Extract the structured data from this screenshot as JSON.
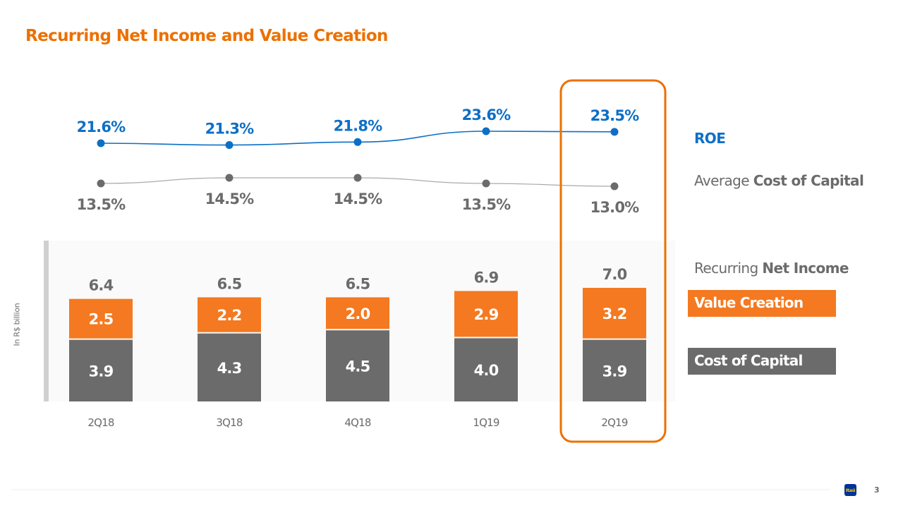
{
  "page": {
    "title": "Recurring Net Income and Value Creation",
    "page_number": "3",
    "logo_text": "Itaú",
    "y_unit_label": "In R$ billion"
  },
  "legend": {
    "roe": "ROE",
    "coc_prefix": "Average ",
    "coc_bold": "Cost of Capital",
    "rni_prefix": "Recurring ",
    "rni_bold": "Net Income",
    "value_creation": "Value Creation",
    "cost_of_capital": "Cost of Capital"
  },
  "colors": {
    "orange": "#f47920",
    "gray": "#6b6b6b",
    "blue": "#0d6fc6",
    "highlight": "#ec7000",
    "panel": "#fafafa"
  },
  "chart_data": {
    "type": "bar",
    "stacked": true,
    "title": "Recurring Net Income and Value Creation",
    "ylabel": "In R$ billion",
    "categories": [
      "2Q18",
      "3Q18",
      "4Q18",
      "1Q19",
      "2Q19"
    ],
    "highlighted_category": "2Q19",
    "series": [
      {
        "name": "Cost of Capital",
        "values": [
          3.9,
          4.3,
          4.5,
          4.0,
          3.9
        ],
        "labels": [
          "3.9",
          "4.3",
          "4.5",
          "4.0",
          "3.9"
        ]
      },
      {
        "name": "Value Creation",
        "values": [
          2.5,
          2.2,
          2.0,
          2.9,
          3.2
        ],
        "labels": [
          "2.5",
          "2.2",
          "2.0",
          "2.9",
          "3.2"
        ]
      }
    ],
    "totals": {
      "name": "Recurring Net Income",
      "values": [
        6.4,
        6.5,
        6.5,
        6.9,
        7.0
      ],
      "labels": [
        "6.4",
        "6.5",
        "6.5",
        "6.9",
        "7.0"
      ]
    },
    "lines": [
      {
        "name": "ROE",
        "type": "line",
        "values": [
          21.6,
          21.3,
          21.8,
          23.6,
          23.5
        ],
        "labels": [
          "21.6%",
          "21.3%",
          "21.8%",
          "23.6%",
          "23.5%"
        ]
      },
      {
        "name": "Average Cost of Capital",
        "type": "line",
        "values": [
          13.5,
          14.5,
          14.5,
          13.5,
          13.0
        ],
        "labels": [
          "13.5%",
          "14.5%",
          "14.5%",
          "13.5%",
          "13.0%"
        ]
      }
    ],
    "legend_position": "right",
    "grid": false
  }
}
